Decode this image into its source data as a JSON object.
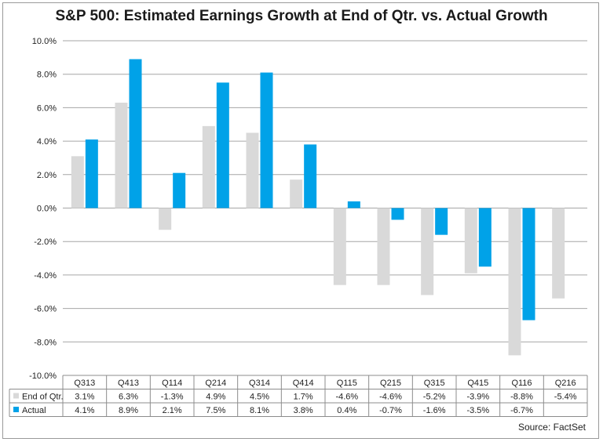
{
  "chart_data": {
    "type": "bar",
    "title": "S&P 500: Estimated Earnings Growth at End of Qtr. vs. Actual Growth",
    "categories": [
      "Q313",
      "Q413",
      "Q114",
      "Q214",
      "Q314",
      "Q414",
      "Q115",
      "Q215",
      "Q315",
      "Q415",
      "Q116",
      "Q216"
    ],
    "series": [
      {
        "name": "End of Qtr.",
        "color": "#d9d9d9",
        "values": [
          3.1,
          6.3,
          -1.3,
          4.9,
          4.5,
          1.7,
          -4.6,
          -4.6,
          -5.2,
          -3.9,
          -8.8,
          -5.4
        ],
        "labels": [
          "3.1%",
          "6.3%",
          "-1.3%",
          "4.9%",
          "4.5%",
          "1.7%",
          "-4.6%",
          "-4.6%",
          "-5.2%",
          "-3.9%",
          "-8.8%",
          "-5.4%"
        ]
      },
      {
        "name": "Actual",
        "color": "#00a2e8",
        "values": [
          4.1,
          8.9,
          2.1,
          7.5,
          8.1,
          3.8,
          0.4,
          -0.7,
          -1.6,
          -3.5,
          -6.7,
          null
        ],
        "labels": [
          "4.1%",
          "8.9%",
          "2.1%",
          "7.5%",
          "8.1%",
          "3.8%",
          "0.4%",
          "-0.7%",
          "-1.6%",
          "-3.5%",
          "-6.7%",
          ""
        ]
      }
    ],
    "ylim": [
      -10,
      10
    ],
    "yticks": [
      "10.0%",
      "8.0%",
      "6.0%",
      "4.0%",
      "2.0%",
      "0.0%",
      "-2.0%",
      "-4.0%",
      "-6.0%",
      "-8.0%",
      "-10.0%"
    ],
    "grid": true,
    "legend": "data-table-below-chart",
    "source": "Source: FactSet"
  }
}
